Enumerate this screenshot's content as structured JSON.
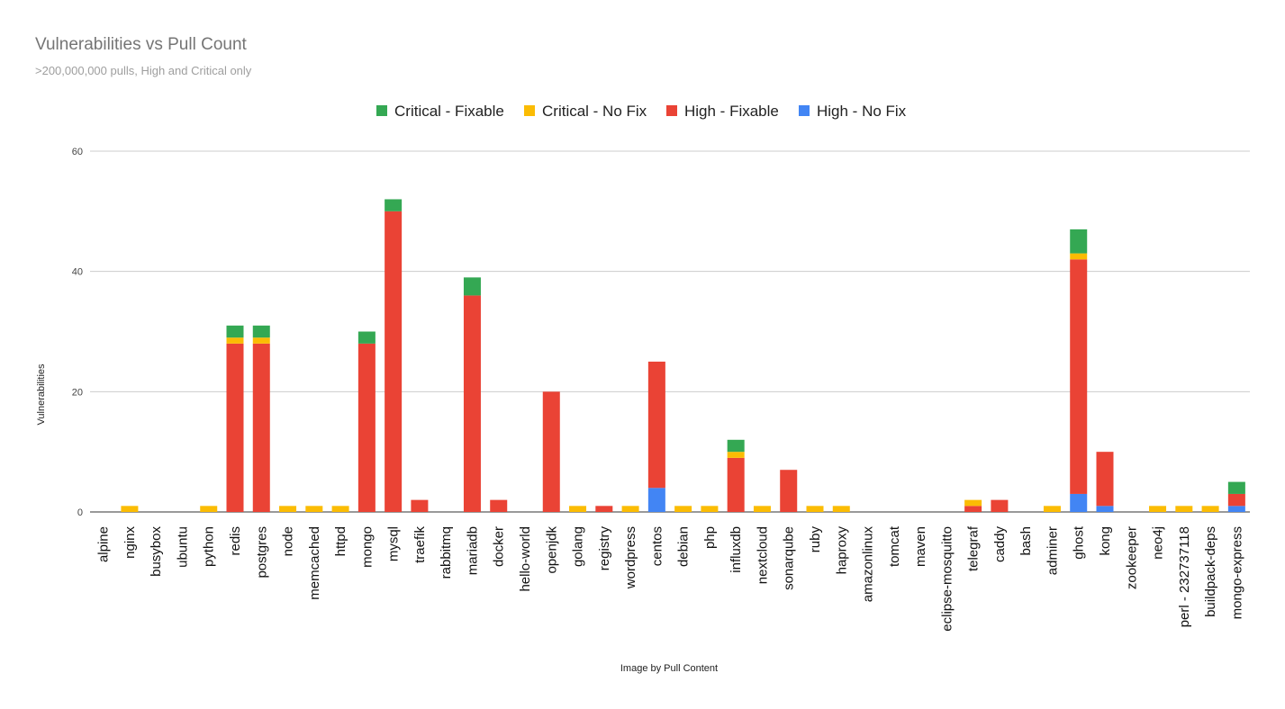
{
  "chart_data": {
    "type": "bar",
    "stacked": true,
    "title": "Vulnerabilities vs Pull Count",
    "subtitle": ">200,000,000 pulls, High and Critical only",
    "xlabel": "Image by Pull Content",
    "ylabel": "Vulnerabilities",
    "ylim": [
      0,
      60
    ],
    "yticks": [
      0,
      20,
      40,
      60
    ],
    "grid": true,
    "legend_position": "top",
    "categories": [
      "alpine",
      "nginx",
      "busybox",
      "ubuntu",
      "python",
      "redis",
      "postgres",
      "node",
      "memcached",
      "httpd",
      "mongo",
      "mysql",
      "traefik",
      "rabbitmq",
      "mariadb",
      "docker",
      "hello-world",
      "openjdk",
      "golang",
      "registry",
      "wordpress",
      "centos",
      "debian",
      "php",
      "influxdb",
      "nextcloud",
      "sonarqube",
      "ruby",
      "haproxy",
      "amazonlinux",
      "tomcat",
      "maven",
      "eclipse-mosquitto",
      "telegraf",
      "caddy",
      "bash",
      "adminer",
      "ghost",
      "kong",
      "zookeeper",
      "neo4j",
      "perl - 232737118",
      "buildpack-deps",
      "mongo-express"
    ],
    "series": [
      {
        "name": "High - No Fix",
        "color": "#4285f4",
        "values": [
          0,
          0,
          0,
          0,
          0,
          0,
          0,
          0,
          0,
          0,
          0,
          0,
          0,
          0,
          0,
          0,
          0,
          0,
          0,
          0,
          0,
          4,
          0,
          0,
          0,
          0,
          0,
          0,
          0,
          0,
          0,
          0,
          0,
          0,
          0,
          0,
          0,
          3,
          1,
          0,
          0,
          0,
          0,
          1
        ]
      },
      {
        "name": "High - Fixable",
        "color": "#ea4335",
        "values": [
          0,
          0,
          0,
          0,
          0,
          28,
          28,
          0,
          0,
          0,
          28,
          50,
          2,
          0,
          36,
          2,
          0,
          20,
          0,
          1,
          0,
          21,
          0,
          0,
          9,
          0,
          7,
          0,
          0,
          0,
          0,
          0,
          0,
          1,
          2,
          0,
          0,
          39,
          9,
          0,
          0,
          0,
          0,
          2
        ]
      },
      {
        "name": "Critical - No Fix",
        "color": "#fbbc04",
        "values": [
          0,
          1,
          0,
          0,
          1,
          1,
          1,
          1,
          1,
          1,
          0,
          0,
          0,
          0,
          0,
          0,
          0,
          0,
          1,
          0,
          1,
          0,
          1,
          1,
          1,
          1,
          0,
          1,
          1,
          0,
          0,
          0,
          0,
          1,
          0,
          0,
          1,
          1,
          0,
          0,
          1,
          1,
          1,
          0
        ]
      },
      {
        "name": "Critical - Fixable",
        "color": "#34a853",
        "values": [
          0,
          0,
          0,
          0,
          0,
          2,
          2,
          0,
          0,
          0,
          2,
          2,
          0,
          0,
          3,
          0,
          0,
          0,
          0,
          0,
          0,
          0,
          0,
          0,
          2,
          0,
          0,
          0,
          0,
          0,
          0,
          0,
          0,
          0,
          0,
          0,
          0,
          4,
          0,
          0,
          0,
          0,
          0,
          2
        ]
      }
    ],
    "legend_order": [
      "Critical - Fixable",
      "Critical - No Fix",
      "High - Fixable",
      "High - No Fix"
    ]
  }
}
